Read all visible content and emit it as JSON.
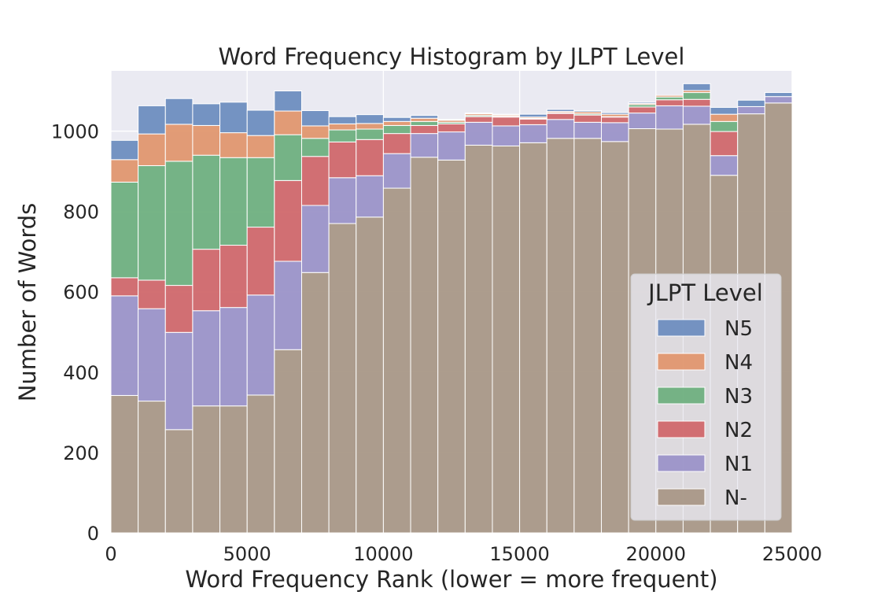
{
  "chart_data": {
    "type": "bar",
    "stacked": true,
    "title": "Word Frequency Histogram by JLPT Level",
    "xlabel": "Word Frequency Rank (lower = more frequent)",
    "ylabel": "Number of Words",
    "xlim": [
      0,
      25000
    ],
    "ylim": [
      0,
      1150
    ],
    "xticks": [
      "0",
      "5000",
      "10000",
      "15000",
      "20000",
      "25000"
    ],
    "yticks": [
      "0",
      "200",
      "400",
      "600",
      "800",
      "1000"
    ],
    "grid": true,
    "legend": {
      "title": "JLPT Level",
      "position": "lower right"
    },
    "bin_edges": [
      0,
      1000,
      2000,
      3000,
      4000,
      5000,
      6000,
      7000,
      8000,
      9000,
      10000,
      11000,
      12000,
      13000,
      14000,
      15000,
      16000,
      17000,
      18000,
      19000,
      20000,
      21000,
      22000,
      23000,
      24000,
      25000
    ],
    "series": [
      {
        "name": "N-",
        "color": "#a99887",
        "values": [
          342,
          328,
          257,
          316,
          316,
          343,
          456,
          648,
          770,
          786,
          858,
          935,
          928,
          965,
          963,
          971,
          982,
          982,
          974,
          1006,
          1005,
          1017,
          890,
          1043,
          1070
        ]
      },
      {
        "name": "N1",
        "color": "#9b93c8",
        "values": [
          248,
          230,
          242,
          237,
          245,
          249,
          220,
          167,
          114,
          103,
          86,
          59,
          70,
          57,
          50,
          45,
          47,
          40,
          47,
          39,
          58,
          45,
          49,
          18,
          16
        ]
      },
      {
        "name": "N2",
        "color": "#d0686b",
        "values": [
          45,
          71,
          117,
          153,
          155,
          169,
          201,
          122,
          89,
          90,
          50,
          20,
          20,
          14,
          22,
          14,
          15,
          18,
          14,
          15,
          15,
          17,
          60,
          0,
          0
        ]
      },
      {
        "name": "N3",
        "color": "#6fb07f",
        "values": [
          238,
          285,
          309,
          234,
          218,
          173,
          114,
          45,
          30,
          26,
          20,
          10,
          4,
          3,
          2,
          2,
          2,
          3,
          1,
          6,
          7,
          17,
          25,
          0,
          0
        ]
      },
      {
        "name": "N4",
        "color": "#e0976f",
        "values": [
          56,
          79,
          92,
          74,
          62,
          55,
          59,
          31,
          15,
          14,
          10,
          8,
          5,
          4,
          3,
          3,
          3,
          5,
          6,
          3,
          4,
          5,
          18,
          0,
          0
        ]
      },
      {
        "name": "N5",
        "color": "#6e8ebf",
        "values": [
          48,
          70,
          64,
          54,
          76,
          63,
          50,
          38,
          18,
          22,
          10,
          7,
          2,
          2,
          2,
          7,
          5,
          3,
          4,
          3,
          0,
          17,
          17,
          16,
          10
        ]
      }
    ]
  }
}
